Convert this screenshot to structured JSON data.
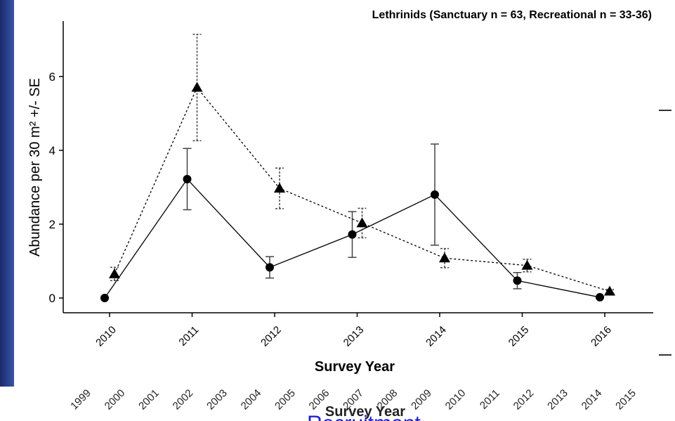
{
  "chart_data": {
    "type": "line",
    "title": "Lethrinids (Sanctuary n = 63, Recreational n = 33-36)",
    "x_label": "Survey Year",
    "y_label": "Abundance per 30 m² +/- SE",
    "categories": [
      "2010",
      "2011",
      "2012",
      "2013",
      "2014",
      "2015",
      "2016"
    ],
    "series": [
      {
        "color": "#000000",
        "marker": "circle",
        "line_style": "solid",
        "values": [
          0,
          3.22,
          0.83,
          1.72,
          2.8,
          0.47,
          0.02
        ],
        "errors": [
          0,
          0.83,
          0.29,
          0.62,
          1.37,
          0.22,
          0.02
        ]
      },
      {
        "color": "#000000",
        "marker": "triangle",
        "line_style": "dotted",
        "values": [
          0.65,
          5.7,
          2.97,
          2.03,
          1.08,
          0.88,
          0.18
        ],
        "errors": [
          0.18,
          1.44,
          0.55,
          0.4,
          0.26,
          0.17,
          0.05
        ]
      }
    ],
    "ylim": [
      -0.4,
      7.5
    ],
    "yticks": [
      0,
      2,
      4,
      6
    ]
  },
  "background": {
    "x_tick_labels": [
      "1999",
      "2000",
      "2001",
      "2002",
      "2003",
      "2004",
      "2005",
      "2006",
      "2007",
      "2008",
      "2009",
      "2010",
      "2011",
      "2012",
      "2013",
      "2014",
      "2015"
    ],
    "x_label": "Survey Year",
    "title": "Recruitment"
  }
}
